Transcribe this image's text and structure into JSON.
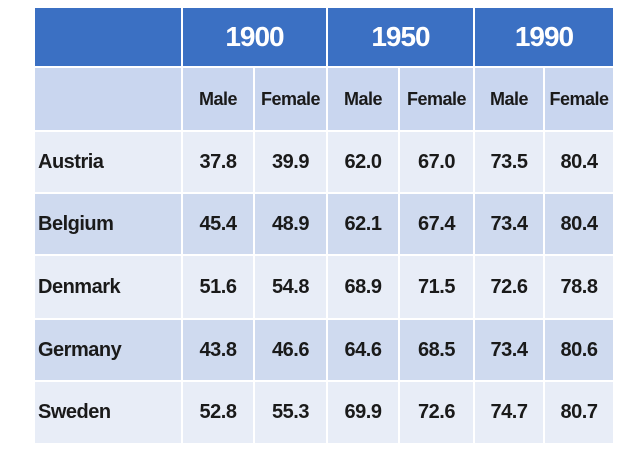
{
  "table": {
    "years": [
      "1900",
      "1950",
      "1990"
    ],
    "subheaders": [
      "Male",
      "Female",
      "Male",
      "Female",
      "Male",
      "Female"
    ],
    "rows": [
      {
        "label": "Austria",
        "values": [
          "37.8",
          "39.9",
          "62.0",
          "67.0",
          "73.5",
          "80.4"
        ]
      },
      {
        "label": "Belgium",
        "values": [
          "45.4",
          "48.9",
          "62.1",
          "67.4",
          "73.4",
          "80.4"
        ]
      },
      {
        "label": "Denmark",
        "values": [
          "51.6",
          "54.8",
          "68.9",
          "71.5",
          "72.6",
          "78.8"
        ]
      },
      {
        "label": "Germany",
        "values": [
          "43.8",
          "46.6",
          "64.6",
          "68.5",
          "73.4",
          "80.6"
        ]
      },
      {
        "label": "Sweden",
        "values": [
          "52.8",
          "55.3",
          "69.9",
          "72.6",
          "74.7",
          "80.7"
        ]
      }
    ]
  }
}
